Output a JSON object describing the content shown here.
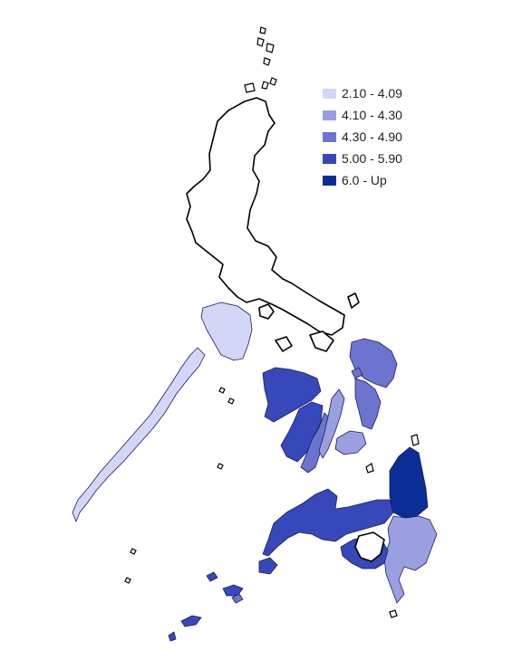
{
  "legend": {
    "items": [
      {
        "label": "2.10 - 4.09",
        "color": "#d3d6f7"
      },
      {
        "label": "4.10 - 4.30",
        "color": "#9a9fe0"
      },
      {
        "label": "4.30 - 4.90",
        "color": "#6c74cf"
      },
      {
        "label": "5.00 - 5.90",
        "color": "#3748ba"
      },
      {
        "label": "6.0 - Up",
        "color": "#0b2e96"
      }
    ]
  }
}
